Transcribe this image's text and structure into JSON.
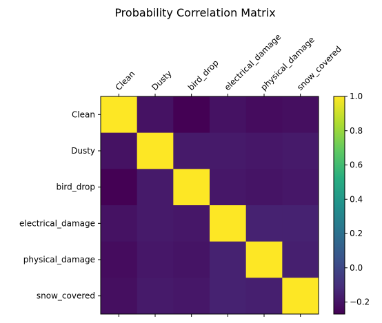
{
  "chart_data": {
    "type": "heatmap",
    "title": "Probability Correlation Matrix",
    "xlabel": "",
    "ylabel": "",
    "categories": [
      "Clean",
      "Dusty",
      "bird_drop",
      "electrical_damage",
      "physical_damage",
      "snow_covered"
    ],
    "x_tick_position": "top",
    "x_tick_rotation_deg": 45,
    "colormap": "viridis",
    "vmin": -0.27,
    "vmax": 1.0,
    "values": [
      [
        1.0,
        -0.21,
        -0.27,
        -0.21,
        -0.23,
        -0.22
      ],
      [
        -0.21,
        1.0,
        -0.18,
        -0.18,
        -0.19,
        -0.18
      ],
      [
        -0.27,
        -0.18,
        1.0,
        -0.19,
        -0.2,
        -0.19
      ],
      [
        -0.21,
        -0.18,
        -0.19,
        1.0,
        -0.15,
        -0.15
      ],
      [
        -0.23,
        -0.19,
        -0.2,
        -0.15,
        1.0,
        -0.16
      ],
      [
        -0.22,
        -0.18,
        -0.19,
        -0.15,
        -0.16,
        1.0
      ]
    ],
    "colorbar": {
      "ticks": [
        1.0,
        0.8,
        0.6,
        0.4,
        0.2,
        0.0,
        -0.2
      ],
      "tick_labels": [
        "1.0",
        "0.8",
        "0.6",
        "0.4",
        "0.2",
        "0.0",
        "−0.2"
      ]
    },
    "grid": false,
    "legend": "colorbar-right"
  }
}
